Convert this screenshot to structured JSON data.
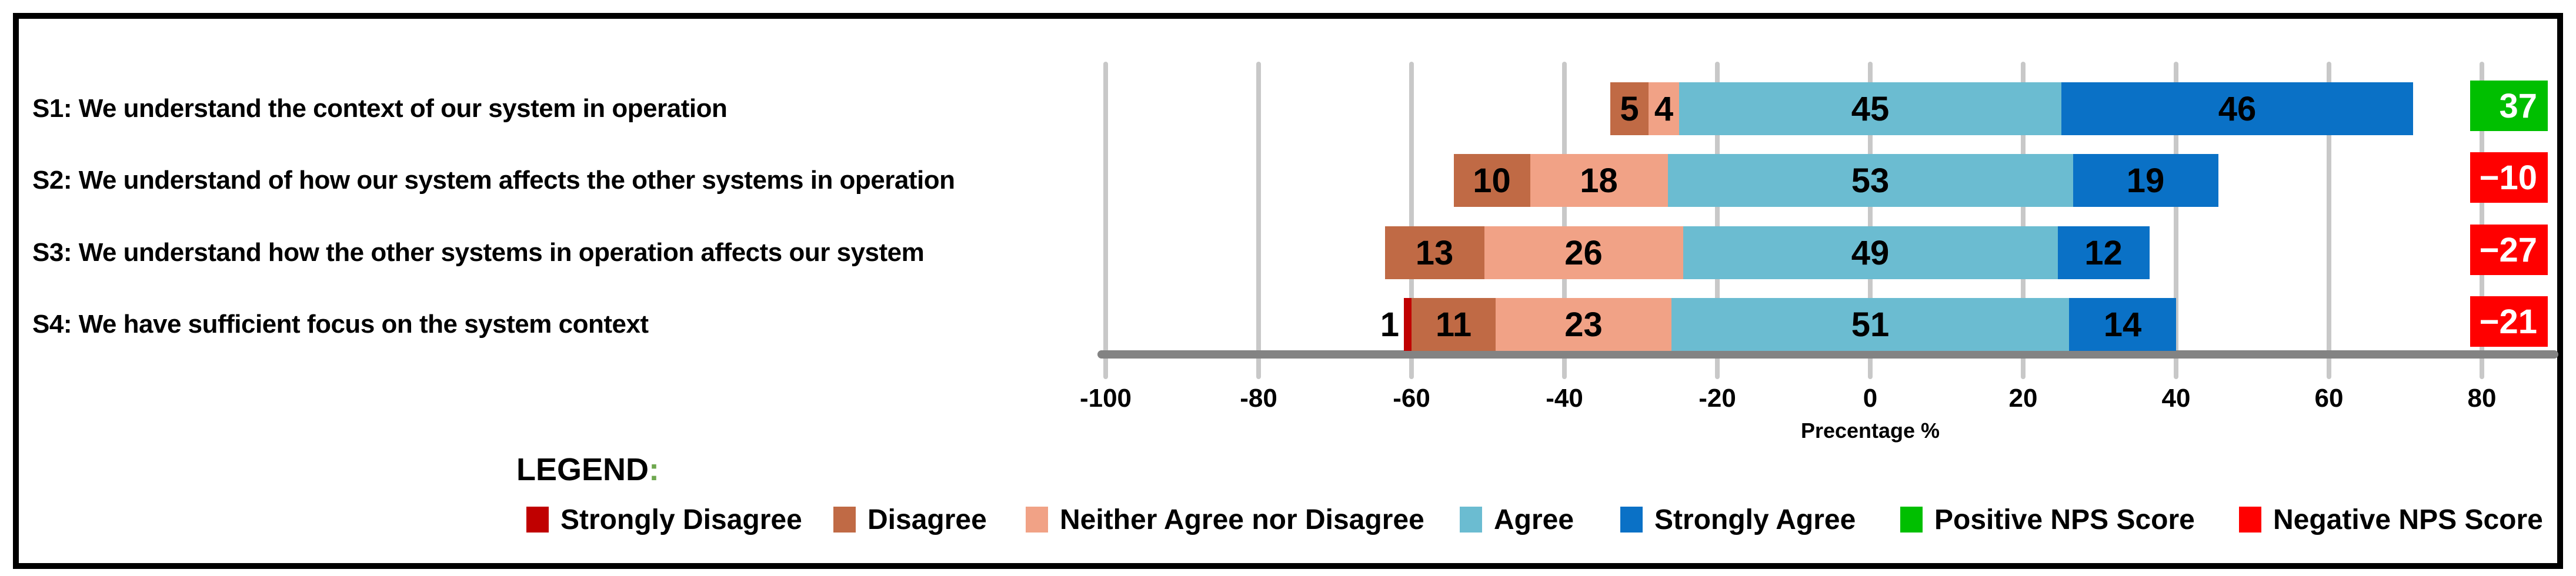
{
  "chart_data": {
    "type": "bar",
    "orientation": "horizontal",
    "stacked": true,
    "diverging": true,
    "title": "",
    "xlabel": "Precentage %",
    "categories": [
      "S1: We understand the context of our system in operation",
      "S2: We understand of how our system affects the other systems in operation",
      "S3: We understand how the other systems in operation affects our system",
      "S4: We have sufficient focus on the system context"
    ],
    "series": [
      {
        "name": "Strongly Disagree",
        "color": "#C00000",
        "values": [
          0,
          0,
          0,
          1
        ]
      },
      {
        "name": "Disagree",
        "color": "#C06A45",
        "values": [
          5,
          10,
          13,
          11
        ]
      },
      {
        "name": "Neither Agree nor Disagree",
        "color": "#F1A286",
        "values": [
          4,
          18,
          26,
          23
        ]
      },
      {
        "name": "Agree",
        "color": "#6BBCD1",
        "values": [
          45,
          53,
          49,
          51
        ]
      },
      {
        "name": "Strongly Agree",
        "color": "#0A71C6",
        "values": [
          46,
          19,
          12,
          14
        ]
      }
    ],
    "agree_drawn_widths": [
      50,
      53,
      49,
      52
    ],
    "nps": {
      "name_positive": "Positive NPS Score",
      "name_negative": "Negative NPS Score",
      "positive_color": "#00BF00",
      "negative_color": "#FF0000",
      "values": [
        37,
        -10,
        -27,
        -21
      ],
      "labels": [
        "37",
        "−10",
        "−27",
        "−21"
      ]
    },
    "axis": {
      "min": -100,
      "max": 80,
      "step": 20,
      "ticks": [
        -100,
        -80,
        -60,
        -40,
        -20,
        0,
        20,
        40,
        60,
        80
      ],
      "grid": true,
      "gridline_color": "#C8C8C8",
      "axis_line_color": "#838383"
    },
    "legend": {
      "title": "LEGEND",
      "colon": ":",
      "colon_color": "#6FA84F",
      "position": "bottom",
      "items": [
        {
          "label": "Strongly Disagree",
          "color": "#C00000"
        },
        {
          "label": "Disagree",
          "color": "#C06A45"
        },
        {
          "label": "Neither Agree nor Disagree",
          "color": "#F1A286"
        },
        {
          "label": "Agree",
          "color": "#6BBCD1"
        },
        {
          "label": "Strongly Agree",
          "color": "#0A71C6"
        },
        {
          "label": "Positive NPS Score",
          "color": "#00BF00"
        },
        {
          "label": "Negative NPS Score",
          "color": "#FF0000"
        }
      ]
    }
  }
}
